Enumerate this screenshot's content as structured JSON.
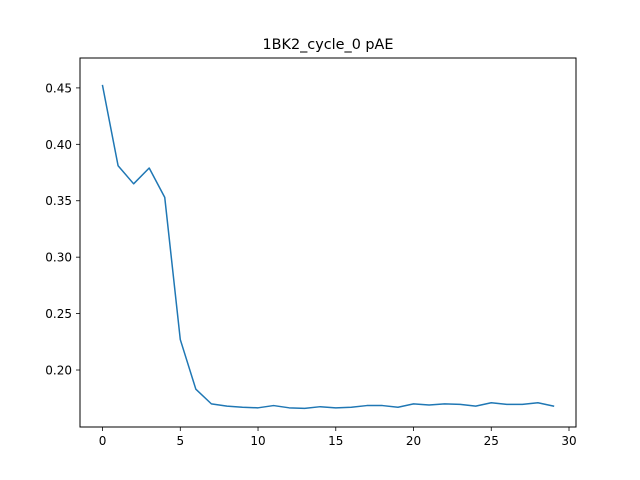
{
  "chart_data": {
    "type": "line",
    "title": "1BK2_cycle_0 pAE",
    "xlabel": "",
    "ylabel": "",
    "xlim": [
      -1.45,
      30.45
    ],
    "ylim": [
      0.1495,
      0.4765
    ],
    "x_ticks": [
      0,
      5,
      10,
      15,
      20,
      25,
      30
    ],
    "y_ticks": [
      0.2,
      0.25,
      0.3,
      0.35,
      0.4,
      0.45
    ],
    "x_tick_labels": [
      "0",
      "5",
      "10",
      "15",
      "20",
      "25",
      "30"
    ],
    "y_tick_labels": [
      "0.20",
      "0.25",
      "0.30",
      "0.35",
      "0.40",
      "0.45"
    ],
    "grid": false,
    "series": [
      {
        "color": "#1f77b4",
        "x": [
          0,
          1,
          2,
          3,
          4,
          5,
          6,
          7,
          8,
          9,
          10,
          11,
          12,
          13,
          14,
          15,
          16,
          17,
          18,
          19,
          20,
          21,
          22,
          23,
          24,
          25,
          26,
          27,
          28,
          29
        ],
        "y": [
          0.452,
          0.381,
          0.365,
          0.379,
          0.353,
          0.227,
          0.183,
          0.17,
          0.168,
          0.167,
          0.1665,
          0.1685,
          0.1665,
          0.166,
          0.1675,
          0.1665,
          0.167,
          0.1685,
          0.1685,
          0.167,
          0.17,
          0.169,
          0.17,
          0.1695,
          0.168,
          0.171,
          0.1695,
          0.1695,
          0.171,
          0.168
        ]
      }
    ]
  }
}
